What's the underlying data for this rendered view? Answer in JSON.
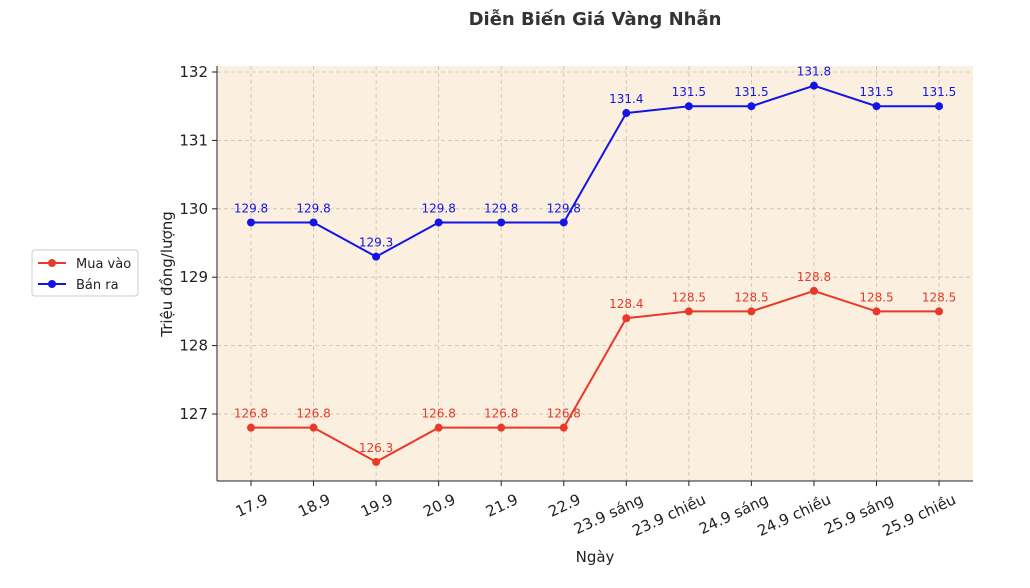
{
  "chart_data": {
    "type": "line",
    "title": "Diễn Biến Giá Vàng Nhẫn",
    "xlabel": "Ngày",
    "ylabel": "Triệu đồng/lượng",
    "categories": [
      "17.9",
      "18.9",
      "19.9",
      "20.9",
      "21.9",
      "22.9",
      "23.9 sáng",
      "23.9 chiều",
      "24.9 sáng",
      "24.9 chiều",
      "25.9 sáng",
      "25.9 chiều"
    ],
    "yticks": [
      "127",
      "128",
      "129",
      "130",
      "131",
      "132"
    ],
    "ylim": [
      126,
      132
    ],
    "grid": true,
    "legend_position": "left",
    "series": [
      {
        "name": "Mua vào",
        "color": "#e8392a",
        "values": [
          126.8,
          126.8,
          126.3,
          126.8,
          126.8,
          126.8,
          128.4,
          128.5,
          128.5,
          128.8,
          128.5,
          128.5
        ],
        "labels": [
          "126.8",
          "126.8",
          "126.3",
          "126.8",
          "126.8",
          "126.8",
          "128.4",
          "128.5",
          "128.5",
          "128.8",
          "128.5",
          "128.5"
        ]
      },
      {
        "name": "Bán ra",
        "color": "#1414e6",
        "values": [
          129.8,
          129.8,
          129.3,
          129.8,
          129.8,
          129.8,
          131.4,
          131.5,
          131.5,
          131.8,
          131.5,
          131.5
        ],
        "labels": [
          "129.8",
          "129.8",
          "129.3",
          "129.8",
          "129.8",
          "129.8",
          "131.4",
          "131.5",
          "131.5",
          "131.8",
          "131.5",
          "131.5"
        ]
      }
    ],
    "plot_background": "#fbf0df"
  }
}
